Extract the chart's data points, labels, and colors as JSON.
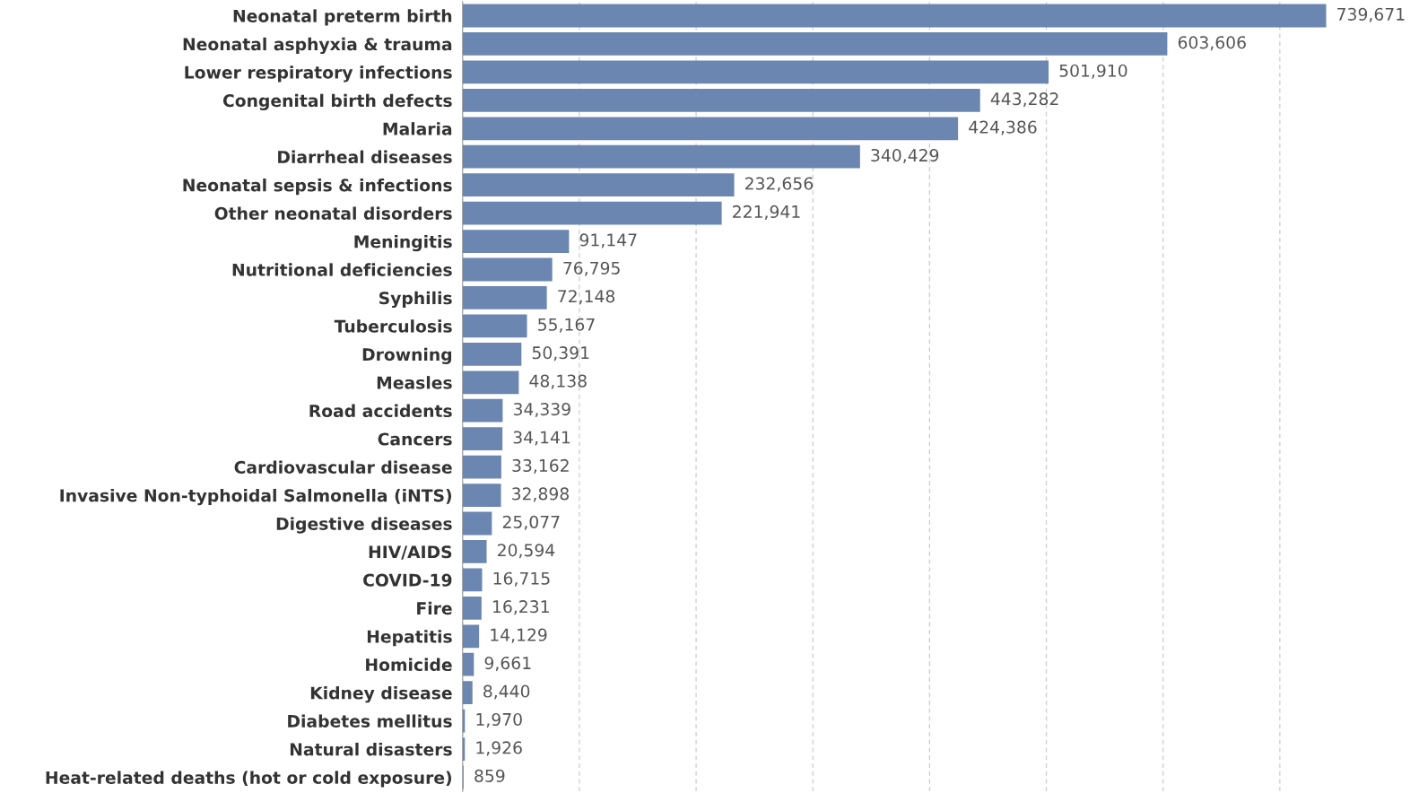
{
  "chart_data": {
    "type": "bar",
    "orientation": "horizontal",
    "categories": [
      "Neonatal preterm birth",
      "Neonatal asphyxia & trauma",
      "Lower respiratory infections",
      "Congenital birth defects",
      "Malaria",
      "Diarrheal diseases",
      "Neonatal sepsis & infections",
      "Other neonatal disorders",
      "Meningitis",
      "Nutritional deficiencies",
      "Syphilis",
      "Tuberculosis",
      "Drowning",
      "Measles",
      "Road accidents",
      "Cancers",
      "Cardiovascular disease",
      "Invasive Non-typhoidal Salmonella (iNTS)",
      "Digestive diseases",
      "HIV/AIDS",
      "COVID-19",
      "Fire",
      "Hepatitis",
      "Homicide",
      "Kidney disease",
      "Diabetes mellitus",
      "Natural disasters",
      "Heat-related deaths (hot or cold exposure)"
    ],
    "values": [
      739671,
      603606,
      501910,
      443282,
      424386,
      340429,
      232656,
      221941,
      91147,
      76795,
      72148,
      55167,
      50391,
      48138,
      34339,
      34141,
      33162,
      32898,
      25077,
      20594,
      16715,
      16231,
      14129,
      9661,
      8440,
      1970,
      1926,
      859
    ],
    "color": "#6b86b1",
    "value_labels": [
      "739,671",
      "603,606",
      "501,910",
      "443,282",
      "424,386",
      "340,429",
      "232,656",
      "221,941",
      "91,147",
      "76,795",
      "72,148",
      "55,167",
      "50,391",
      "48,138",
      "34,339",
      "34,141",
      "33,162",
      "32,898",
      "25,077",
      "20,594",
      "16,715",
      "16,231",
      "14,129",
      "9,661",
      "8,440",
      "1,970",
      "1,926",
      "859"
    ],
    "xticks": [
      {
        "value": 0,
        "label": null
      },
      {
        "value": 100000,
        "label": null
      },
      {
        "value": 200000,
        "label": null
      },
      {
        "value": 300000,
        "label": null
      },
      {
        "value": 400000,
        "label": null
      },
      {
        "value": 500000,
        "label": null
      },
      {
        "value": 600000,
        "label": null
      },
      {
        "value": 700000,
        "label": null
      }
    ],
    "tick_labels": "y",
    "grid": "x",
    "legend": false
  }
}
